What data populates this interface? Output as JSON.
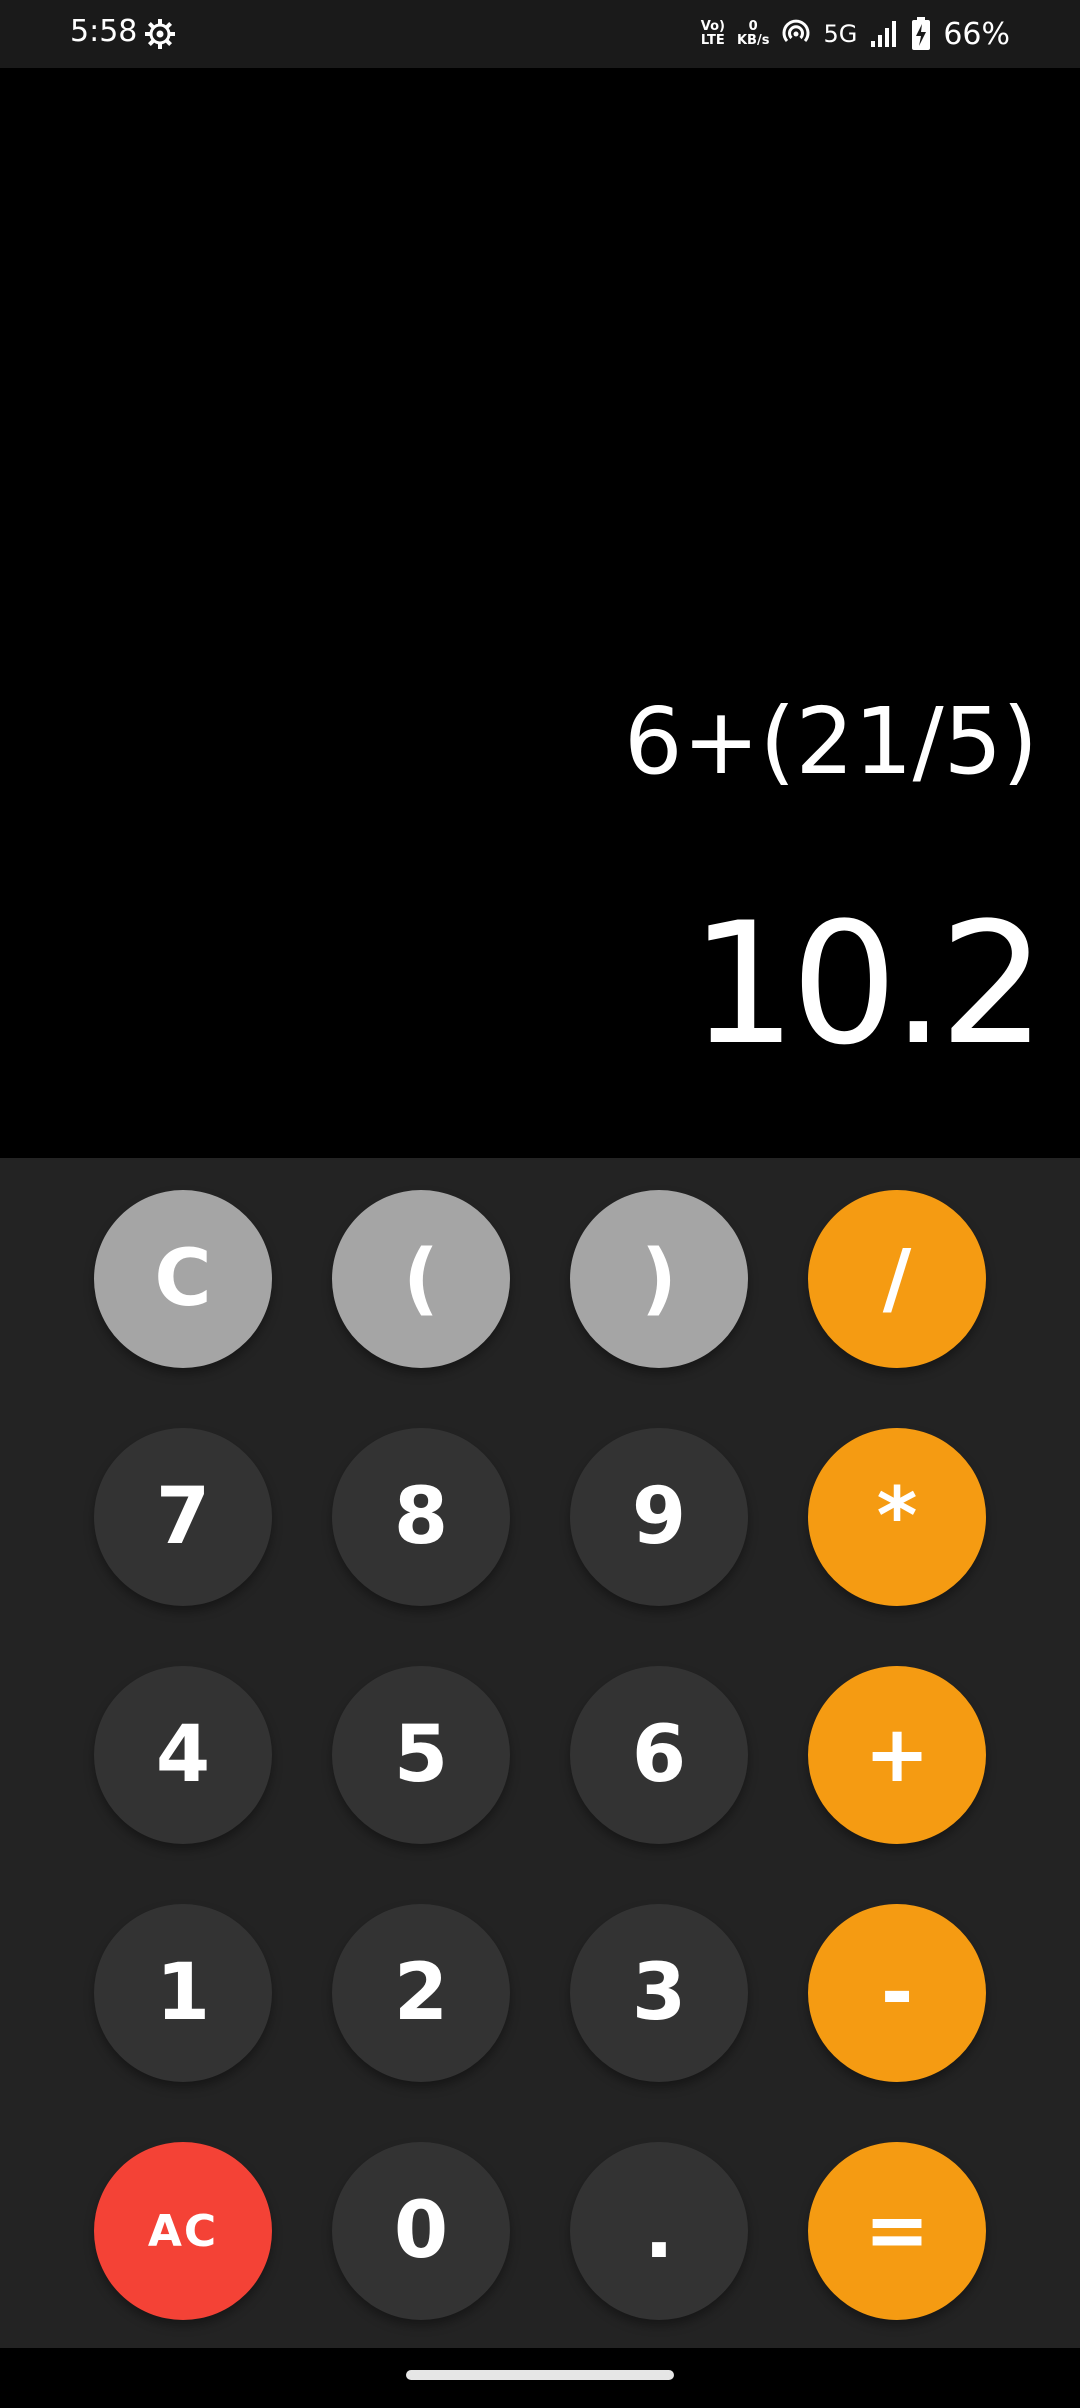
{
  "status_bar": {
    "time": "5:58",
    "volte_top": "Vo)",
    "volte_bottom": "LTE",
    "speed_top": "0",
    "speed_bottom": "KB/s",
    "network": "5G",
    "battery": "66%"
  },
  "display": {
    "expression": "6+(21/5)",
    "result": "10.2"
  },
  "keys": [
    {
      "label": "C",
      "style": "gray",
      "name": "clear-entry-button"
    },
    {
      "label": "(",
      "style": "gray",
      "name": "open-paren-button"
    },
    {
      "label": ")",
      "style": "gray",
      "name": "close-paren-button"
    },
    {
      "label": "/",
      "style": "orange",
      "name": "divide-button"
    },
    {
      "label": "7",
      "style": "dark",
      "name": "digit-7-button"
    },
    {
      "label": "8",
      "style": "dark",
      "name": "digit-8-button"
    },
    {
      "label": "9",
      "style": "dark",
      "name": "digit-9-button"
    },
    {
      "label": "*",
      "style": "orange",
      "name": "multiply-button"
    },
    {
      "label": "4",
      "style": "dark",
      "name": "digit-4-button"
    },
    {
      "label": "5",
      "style": "dark",
      "name": "digit-5-button"
    },
    {
      "label": "6",
      "style": "dark",
      "name": "digit-6-button"
    },
    {
      "label": "+",
      "style": "orange",
      "name": "add-button"
    },
    {
      "label": "1",
      "style": "dark",
      "name": "digit-1-button"
    },
    {
      "label": "2",
      "style": "dark",
      "name": "digit-2-button"
    },
    {
      "label": "3",
      "style": "dark",
      "name": "digit-3-button"
    },
    {
      "label": "-",
      "style": "orange",
      "name": "subtract-button"
    },
    {
      "label": "AC",
      "style": "red",
      "name": "all-clear-button"
    },
    {
      "label": "0",
      "style": "dark",
      "name": "digit-0-button"
    },
    {
      "label": ".",
      "style": "dark",
      "name": "decimal-point-button"
    },
    {
      "label": "=",
      "style": "orange",
      "name": "equals-button"
    }
  ],
  "colors": {
    "operator": "#f59b12",
    "function": "#a5a5a5",
    "digit": "#333333",
    "clear_all": "#f44236",
    "keypad_bg": "#232323"
  },
  "icons": {
    "settings": "gear-icon",
    "hotspot": "hotspot-icon",
    "signal": "signal-icon",
    "battery": "battery-charging-icon"
  }
}
